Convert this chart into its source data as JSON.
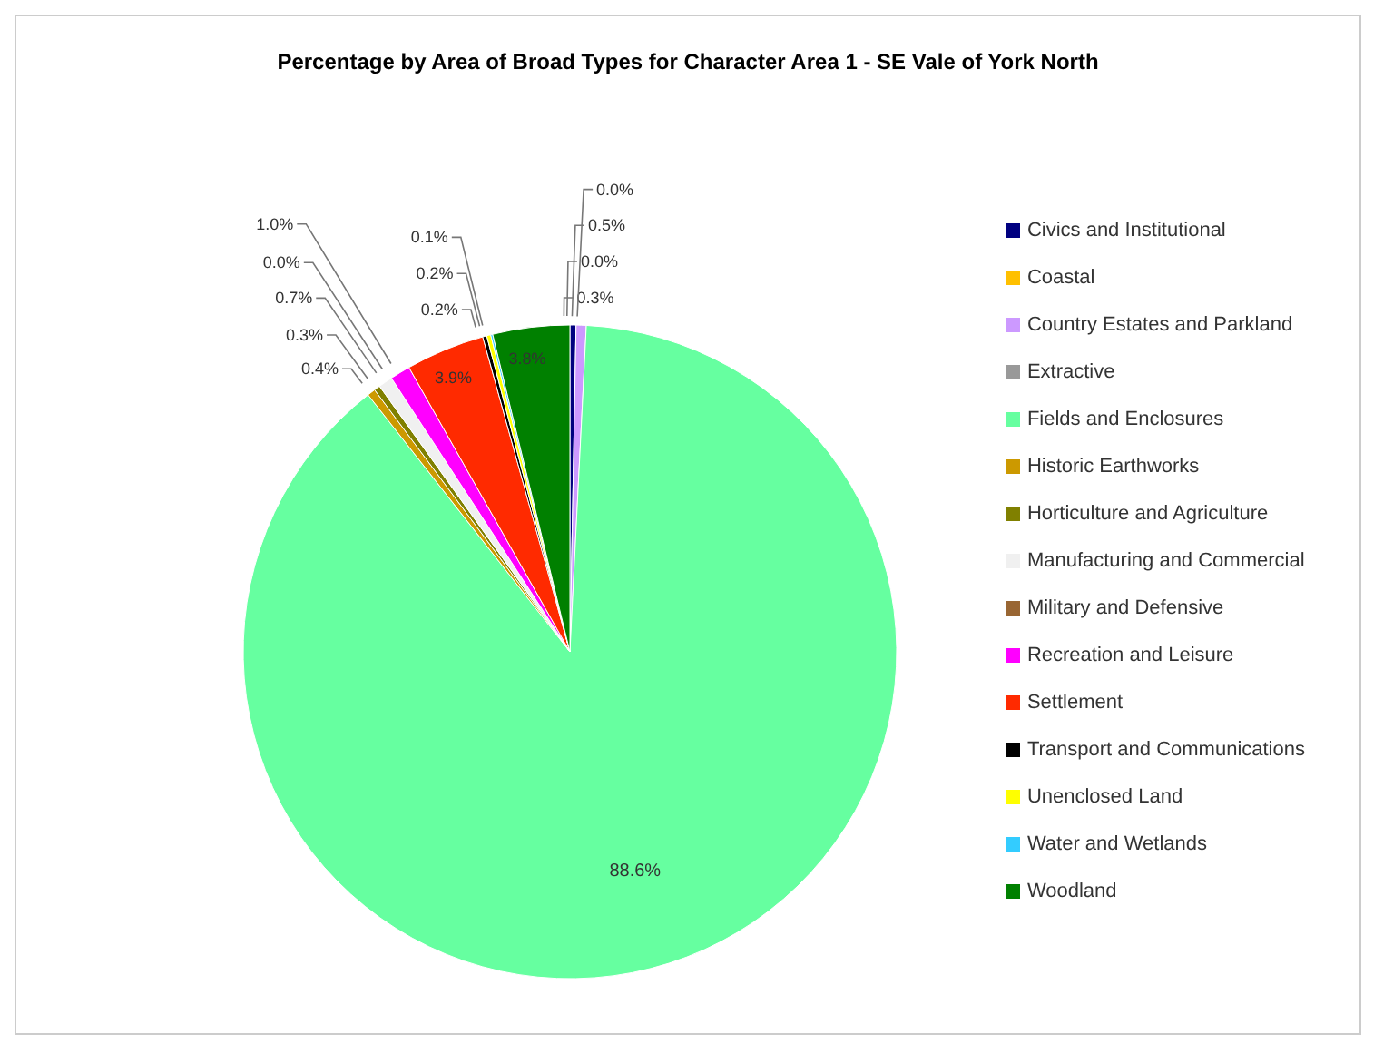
{
  "chart_data": {
    "type": "pie",
    "title": "Percentage by Area of Broad Types for Character Area 1 - SE Vale of York North",
    "categories": [
      "Civics and Institutional",
      "Coastal",
      "Country Estates and Parkland",
      "Extractive",
      "Fields and Enclosures",
      "Historic Earthworks",
      "Horticulture and Agriculture",
      "Manufacturing and Commercial",
      "Military and Defensive",
      "Recreation and Leisure",
      "Settlement",
      "Transport and Communications",
      "Unenclosed Land",
      "Water and Wetlands",
      "Woodland"
    ],
    "values": [
      0.3,
      0.0,
      0.5,
      0.0,
      88.6,
      0.4,
      0.3,
      0.7,
      0.0,
      1.0,
      3.9,
      0.2,
      0.2,
      0.1,
      3.8
    ],
    "value_labels": [
      "0.3%",
      "0.0%",
      "0.5%",
      "0.0%",
      "88.6%",
      "0.4%",
      "0.3%",
      "0.7%",
      "0.0%",
      "1.0%",
      "3.9%",
      "0.2%",
      "0.2%",
      "0.1%",
      "3.8%"
    ],
    "colors": [
      "#000080",
      "#ffc000",
      "#cc99ff",
      "#999999",
      "#66ffa0",
      "#cc9900",
      "#808000",
      "#f0f0f0",
      "#996633",
      "#ff00ff",
      "#ff2a00",
      "#000000",
      "#ffff00",
      "#33ccff",
      "#008000"
    ],
    "legend": "right"
  }
}
